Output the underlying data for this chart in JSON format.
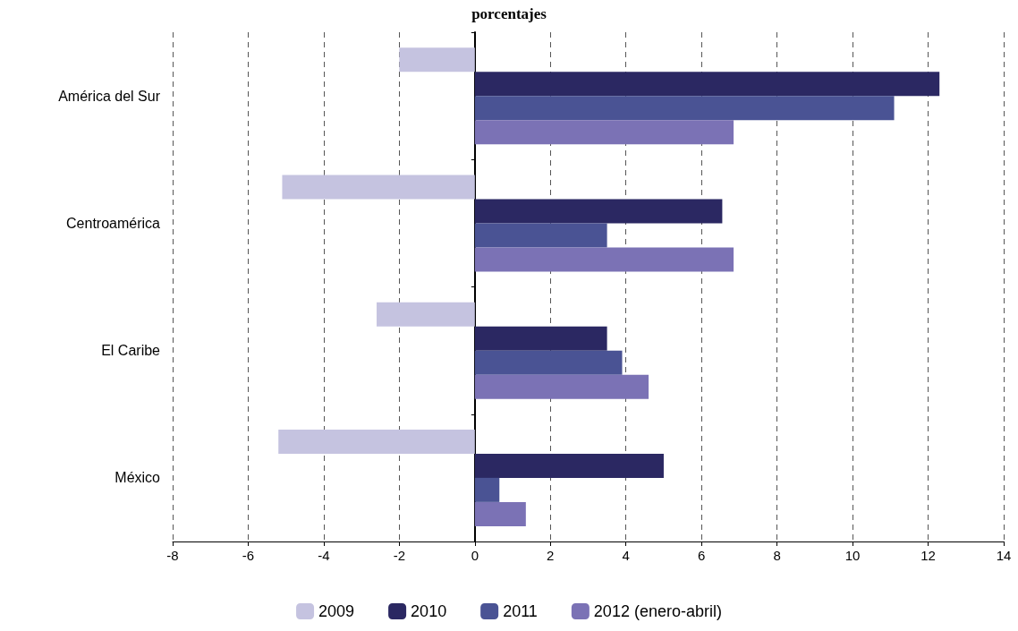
{
  "chart_data": {
    "type": "bar",
    "orientation": "horizontal",
    "title": "porcentajes",
    "categories": [
      "América del Sur",
      "Centroamérica",
      "El Caribe",
      "México"
    ],
    "series": [
      {
        "name": "2009",
        "color": "#c5c3e0",
        "values": [
          -2.0,
          -5.1,
          -2.6,
          -5.2
        ]
      },
      {
        "name": "2010",
        "color": "#2b2862",
        "values": [
          12.3,
          6.55,
          3.5,
          5.0
        ]
      },
      {
        "name": "2011",
        "color": "#4a5394",
        "values": [
          11.1,
          3.5,
          3.9,
          0.65
        ]
      },
      {
        "name": "2012 (enero-abril)",
        "color": "#7b72b5",
        "values": [
          6.85,
          6.85,
          4.6,
          1.35
        ]
      }
    ],
    "xlim": [
      -8,
      14
    ],
    "xticks": [
      -8,
      -6,
      -4,
      -2,
      0,
      2,
      4,
      6,
      8,
      10,
      12,
      14
    ],
    "grid": "x",
    "legend": "bottom"
  }
}
